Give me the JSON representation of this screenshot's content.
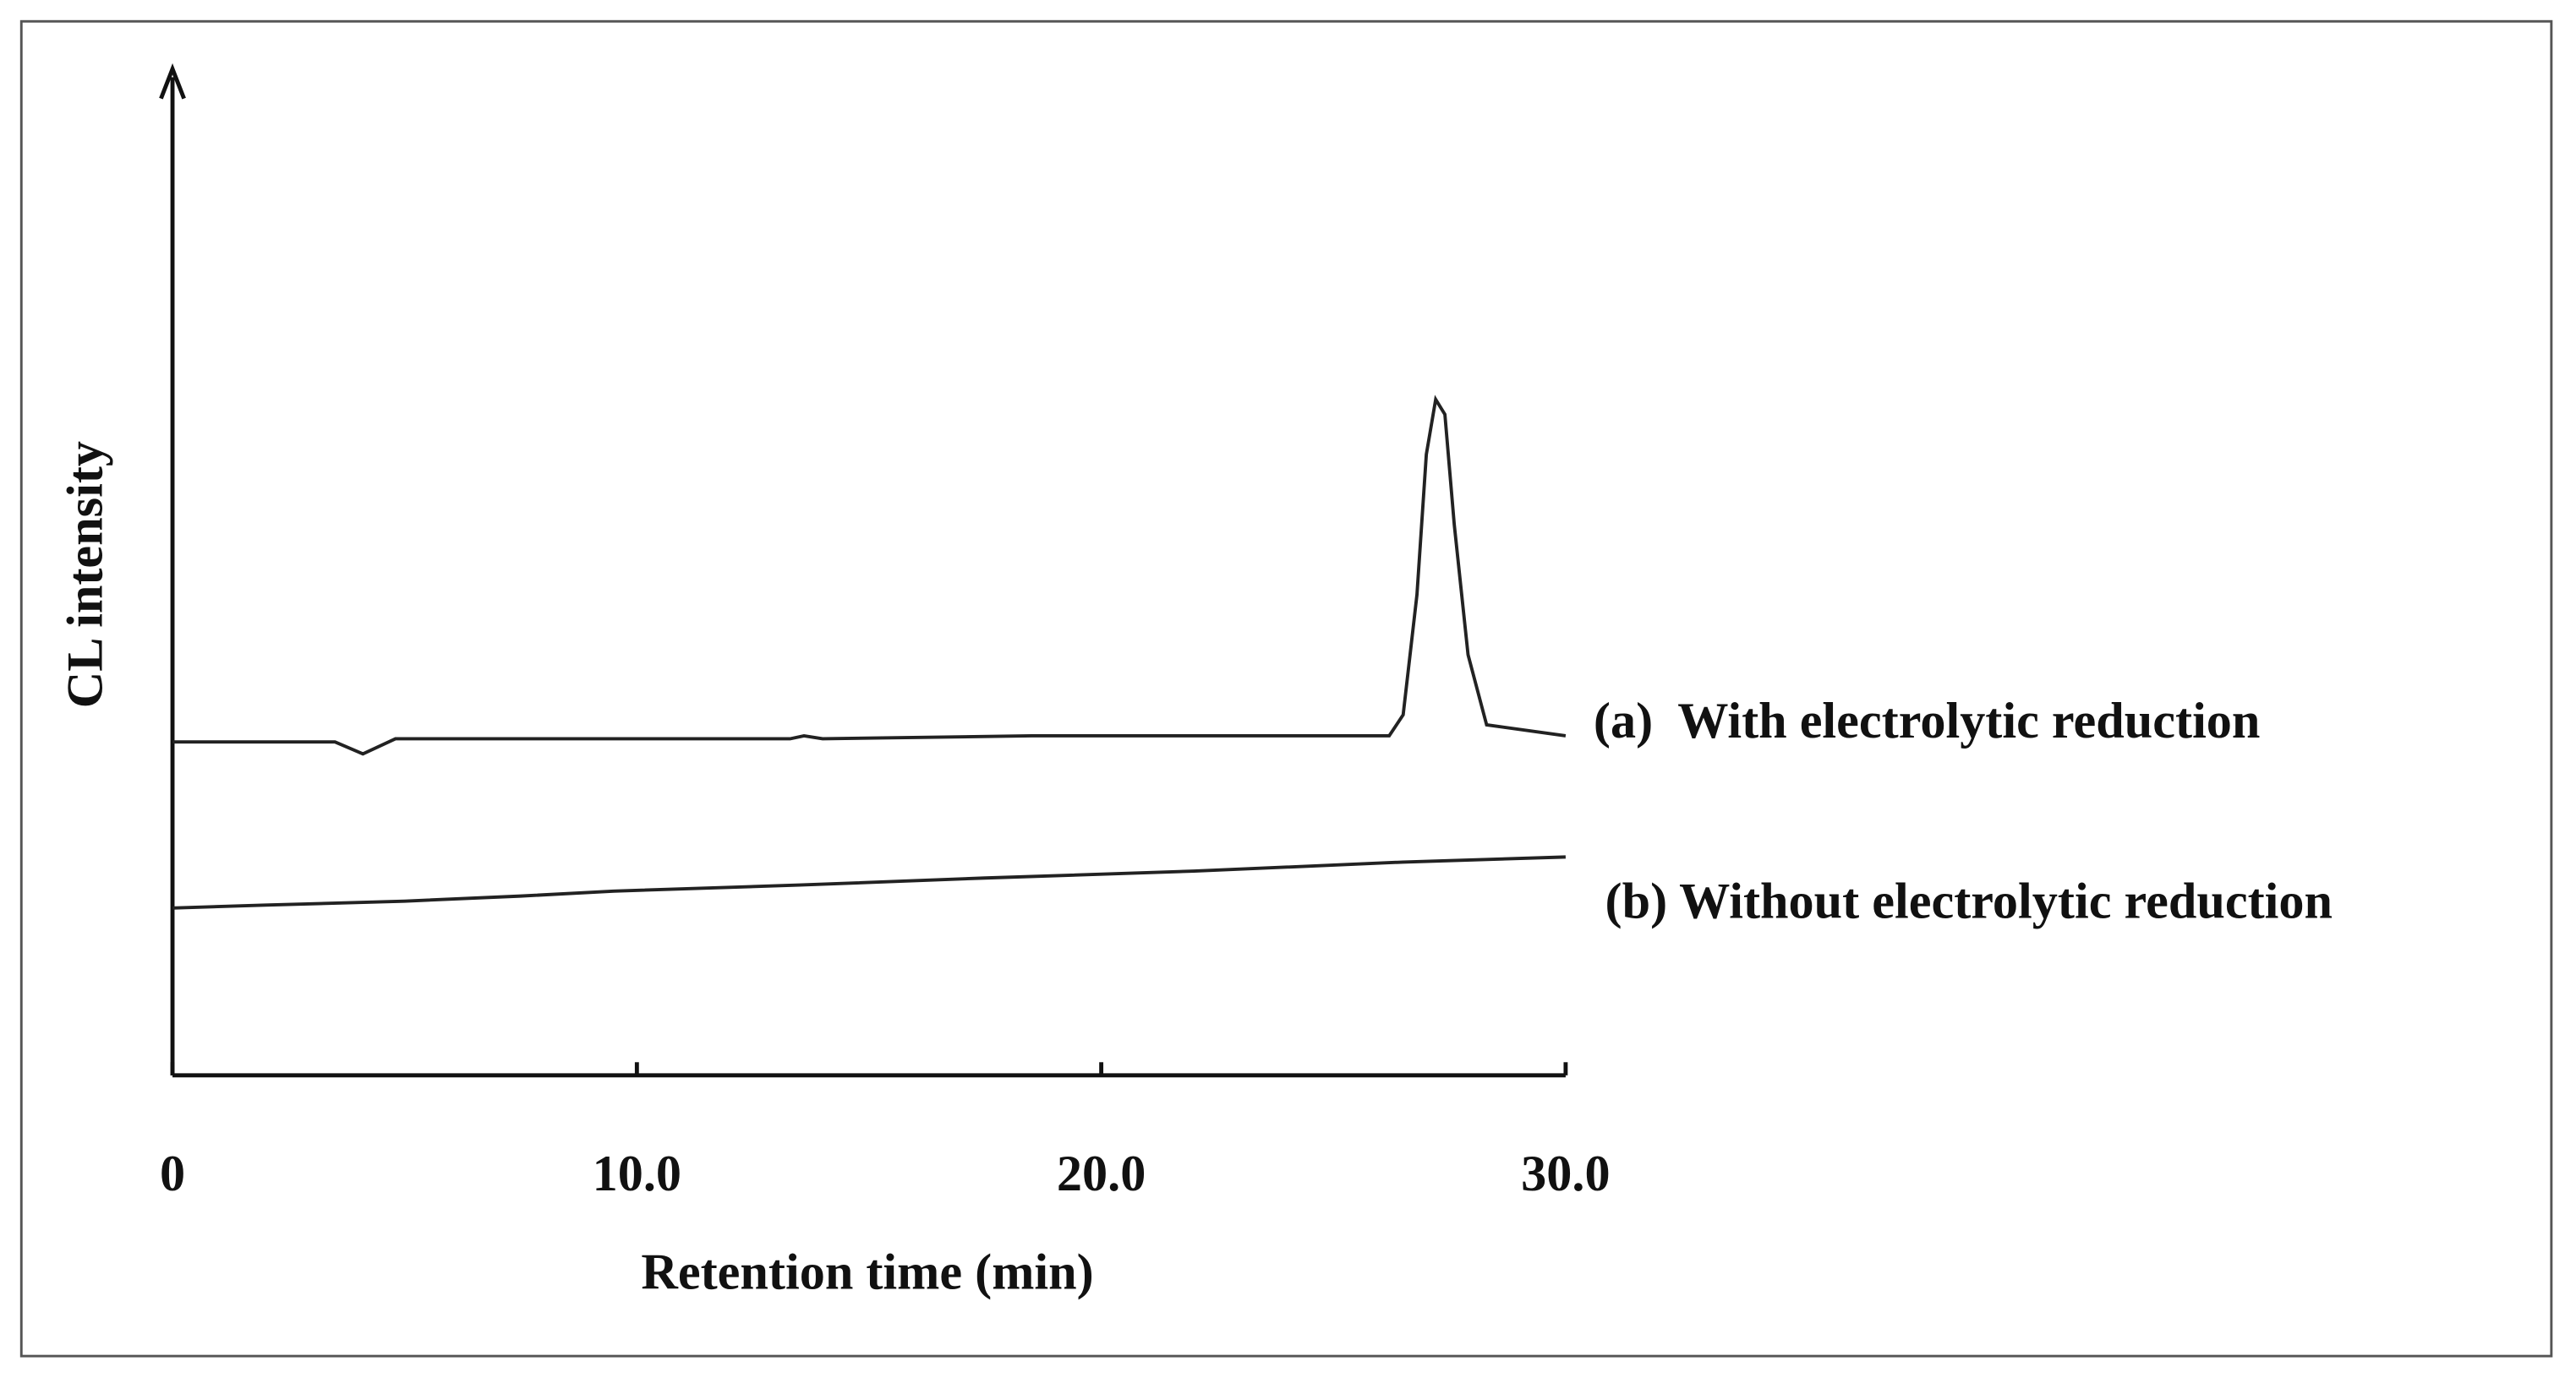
{
  "chart_data": {
    "type": "line",
    "xlabel": "Retention time (min)",
    "ylabel": "CL intensity",
    "xlim": [
      0,
      30
    ],
    "xticks": [
      0,
      {
        "value": 10,
        "label": "10.0"
      },
      {
        "value": 20,
        "label": "20.0"
      },
      {
        "value": 30,
        "label": "30.0"
      }
    ],
    "ylim": [
      0,
      100
    ],
    "series": [
      {
        "name": "(a)  With electrolytic reduction",
        "color": "#222222",
        "x": [
          0,
          3.5,
          4.1,
          4.8,
          13.3,
          13.6,
          14.0,
          18.5,
          19.0,
          26.2,
          26.5,
          26.8,
          27.0,
          27.2,
          27.4,
          27.6,
          27.9,
          28.3,
          30
        ],
        "values": [
          33.3,
          33.3,
          32.1,
          33.6,
          33.6,
          33.9,
          33.6,
          33.9,
          33.9,
          33.9,
          36,
          48,
          62,
          67.5,
          66,
          55,
          42,
          35,
          33.9
        ]
      },
      {
        "name": "(b) Without electrolytic reduction",
        "color": "#222222",
        "x": [
          0,
          2,
          5,
          7.5,
          9.5,
          13.5,
          17.5,
          22,
          26.5,
          30
        ],
        "values": [
          16.7,
          17.0,
          17.4,
          17.9,
          18.4,
          19.0,
          19.7,
          20.4,
          21.3,
          21.8
        ]
      }
    ]
  }
}
